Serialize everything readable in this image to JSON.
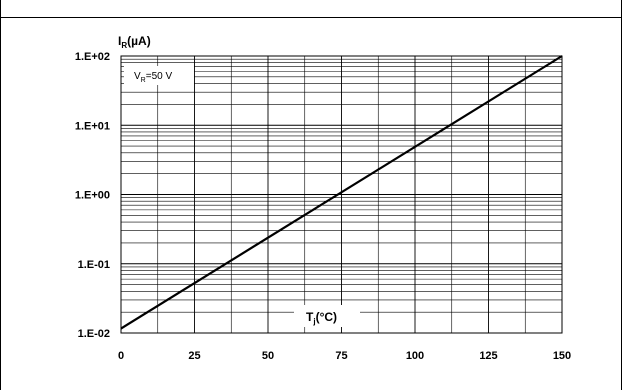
{
  "chart_data": {
    "type": "line",
    "title": "",
    "ylabel": {
      "main": "I",
      "sub": "R",
      "unit": "(µA)"
    },
    "xlabel": {
      "main": "T",
      "sub": "j",
      "unit": "(°C)"
    },
    "annotation": {
      "main": "V",
      "sub": "R",
      "rest": "=50 V"
    },
    "x_scale": "linear",
    "y_scale": "log",
    "xlim": [
      0,
      150
    ],
    "ylim": [
      0.01,
      100
    ],
    "x_ticks": [
      0,
      25,
      50,
      75,
      100,
      125,
      150
    ],
    "x_tick_labels": [
      "0",
      "25",
      "50",
      "75",
      "100",
      "125",
      "150"
    ],
    "y_ticks": [
      0.01,
      0.1,
      1,
      10,
      100
    ],
    "y_tick_labels": [
      "1.E-02",
      "1.E-01",
      "1.E+00",
      "1.E+01",
      "1.E+02"
    ],
    "grid": true,
    "series": [
      {
        "x": [
          0,
          150
        ],
        "y": [
          0.0116,
          100
        ],
        "color": "#000000"
      }
    ]
  }
}
